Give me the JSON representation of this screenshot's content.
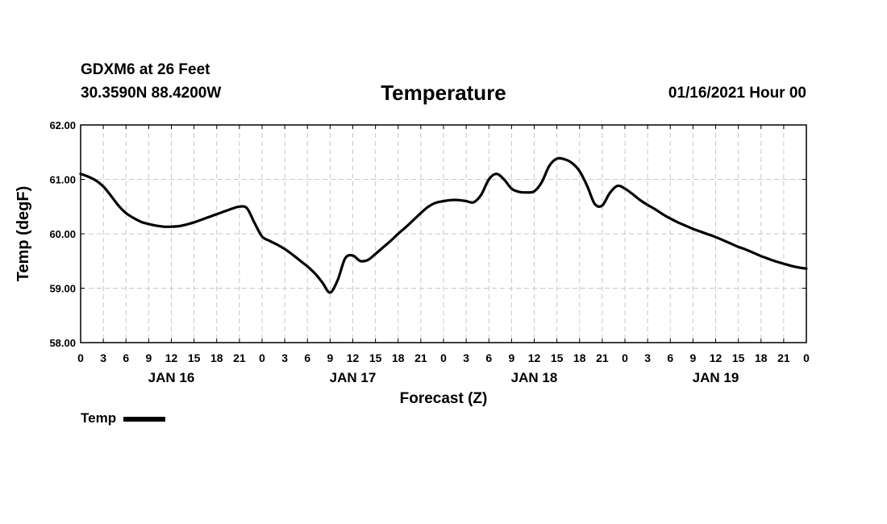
{
  "header": {
    "station": "GDXM6 at 26 Feet",
    "coords": "30.3590N 88.4200W",
    "title": "Temperature",
    "datetime": "01/16/2021 Hour 00"
  },
  "chart_data": {
    "type": "line",
    "title": "Temperature",
    "xlabel": "Forecast (Z)",
    "ylabel": "Temp (degF)",
    "ylim": [
      58.0,
      62.0
    ],
    "yticks": [
      "58.00",
      "59.00",
      "60.00",
      "61.00",
      "62.00"
    ],
    "xlim_hours": [
      0,
      96
    ],
    "x_tick_labels": [
      "0",
      "3",
      "6",
      "9",
      "12",
      "15",
      "18",
      "21",
      "0",
      "3",
      "6",
      "9",
      "12",
      "15",
      "18",
      "21",
      "0",
      "3",
      "6",
      "9",
      "12",
      "15",
      "18",
      "21",
      "0",
      "3",
      "6",
      "9",
      "12",
      "15",
      "18",
      "21",
      "0"
    ],
    "day_labels": [
      {
        "label": "JAN 16",
        "hour": 12
      },
      {
        "label": "JAN 17",
        "hour": 36
      },
      {
        "label": "JAN 18",
        "hour": 60
      },
      {
        "label": "JAN 19",
        "hour": 84
      }
    ],
    "grid": true,
    "legend_position": "bottom-left",
    "series": [
      {
        "name": "Temp",
        "color": "#000000",
        "x": [
          0,
          1,
          2,
          3,
          4,
          5,
          6,
          7,
          8,
          9,
          10,
          11,
          12,
          13,
          14,
          15,
          16,
          17,
          18,
          19,
          20,
          21,
          22,
          23,
          24,
          25,
          26,
          27,
          28,
          29,
          30,
          31,
          32,
          33,
          34,
          35,
          36,
          37,
          38,
          39,
          40,
          41,
          42,
          43,
          44,
          45,
          46,
          47,
          48,
          49,
          50,
          51,
          52,
          53,
          54,
          55,
          56,
          57,
          58,
          59,
          60,
          61,
          62,
          63,
          64,
          65,
          66,
          67,
          68,
          69,
          70,
          71,
          72,
          73,
          74,
          75,
          76,
          77,
          78,
          79,
          80,
          81,
          82,
          83,
          84,
          85,
          86,
          87,
          88,
          89,
          90,
          91,
          92,
          93,
          94,
          95,
          96
        ],
        "values": [
          61.1,
          61.05,
          60.98,
          60.87,
          60.7,
          60.52,
          60.38,
          60.29,
          60.22,
          60.18,
          60.15,
          60.13,
          60.13,
          60.14,
          60.17,
          60.21,
          60.26,
          60.31,
          60.36,
          60.41,
          60.46,
          60.5,
          60.47,
          60.2,
          59.95,
          59.87,
          59.8,
          59.72,
          59.62,
          59.51,
          59.4,
          59.27,
          59.1,
          58.92,
          59.15,
          59.55,
          59.6,
          59.5,
          59.52,
          59.63,
          59.75,
          59.87,
          60.0,
          60.12,
          60.25,
          60.38,
          60.5,
          60.57,
          60.6,
          60.62,
          60.62,
          60.6,
          60.58,
          60.72,
          61.0,
          61.1,
          61.0,
          60.83,
          60.77,
          60.76,
          60.78,
          60.95,
          61.25,
          61.38,
          61.37,
          61.3,
          61.15,
          60.88,
          60.55,
          60.52,
          60.75,
          60.88,
          60.83,
          60.73,
          60.62,
          60.53,
          60.45,
          60.36,
          60.28,
          60.21,
          60.15,
          60.09,
          60.04,
          59.99,
          59.94,
          59.88,
          59.82,
          59.76,
          59.71,
          59.65,
          59.59,
          59.54,
          59.49,
          59.45,
          59.41,
          59.38,
          59.36
        ]
      }
    ]
  },
  "legend": {
    "label": "Temp"
  }
}
